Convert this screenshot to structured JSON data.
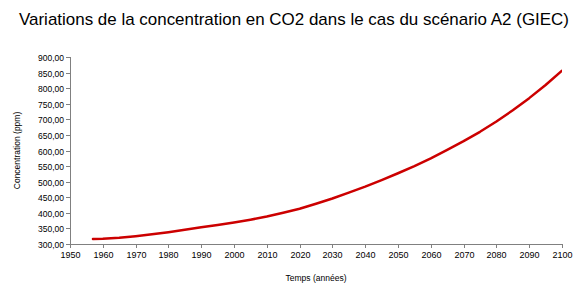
{
  "chart_data": {
    "type": "line",
    "title": "Variations de la concentration en CO2 dans le cas du scénario A2 (GIEC)",
    "xlabel": "Temps (années)",
    "ylabel": "Concentration (ppm)",
    "x": [
      1957,
      1960,
      1965,
      1970,
      1975,
      1980,
      1985,
      1990,
      1995,
      2000,
      2005,
      2010,
      2015,
      2020,
      2025,
      2030,
      2035,
      2040,
      2045,
      2050,
      2055,
      2060,
      2065,
      2070,
      2075,
      2080,
      2085,
      2090,
      2095,
      2100
    ],
    "values": [
      316,
      317,
      320,
      325,
      331,
      338,
      346,
      354,
      361,
      369,
      378,
      388,
      400,
      413,
      429,
      446,
      465,
      484,
      505,
      527,
      550,
      575,
      602,
      630,
      660,
      693,
      729,
      768,
      810,
      856
    ],
    "color": "#cc0000",
    "xlim": [
      1950,
      2100
    ],
    "ylim": [
      300,
      900
    ],
    "xticks": [
      1950,
      1960,
      1970,
      1980,
      1990,
      2000,
      2010,
      2020,
      2030,
      2040,
      2050,
      2060,
      2070,
      2080,
      2090,
      2100
    ],
    "yticks": [
      {
        "value": 300,
        "label": "300,00"
      },
      {
        "value": 350,
        "label": "350,00"
      },
      {
        "value": 400,
        "label": "400,00"
      },
      {
        "value": 450,
        "label": "450,00"
      },
      {
        "value": 500,
        "label": "500,00"
      },
      {
        "value": 550,
        "label": "550,00"
      },
      {
        "value": 600,
        "label": "600,00"
      },
      {
        "value": 650,
        "label": "650,00"
      },
      {
        "value": 700,
        "label": "700,00"
      },
      {
        "value": 750,
        "label": "750,00"
      },
      {
        "value": 800,
        "label": "800,00"
      },
      {
        "value": 850,
        "label": "850,00"
      },
      {
        "value": 900,
        "label": "900,00"
      }
    ],
    "grid": false
  }
}
